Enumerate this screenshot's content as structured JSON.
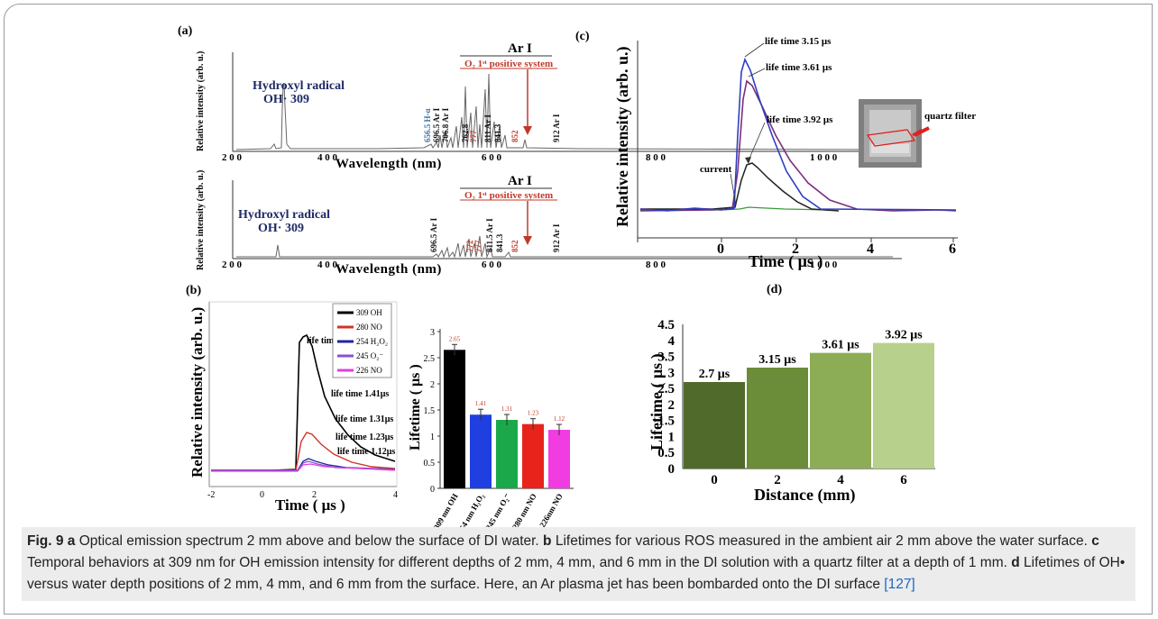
{
  "panels": {
    "a": {
      "label": "(a)",
      "top": {
        "header": "Ar I",
        "o2_label": "O₂ 1ˢᵗ positive system",
        "oh_title": "Hydroxyl radical",
        "oh_peak": "OH· 309",
        "ylabel": "Relative intensity (arb. u.)",
        "xlabel": "Wavelength (nm)",
        "ticks": [
          "2 0 0",
          "4 0 0",
          "6 0 0",
          "8 0 0",
          "1 0 0 0"
        ],
        "peak_labels": [
          "656.5 H-α",
          "696.5 Ar I",
          "706.8 Ar I",
          "762.8",
          "777",
          "811 Ar I",
          "841.3",
          "852",
          "912 Ar I"
        ]
      },
      "bottom": {
        "header": "Ar I",
        "o2_label": "O₂ 1ˢᵗ positive system",
        "oh_title": "Hydroxyl radical",
        "oh_peak": "OH· 309",
        "ylabel": "Relative intensity (arb. u.)",
        "xlabel": "Wavelength (nm)",
        "ticks": [
          "2 0 0",
          "4 0 0",
          "6 0 0",
          "8 0 0",
          "1 0 0 0"
        ],
        "peak_labels": [
          "696.5 Ar I",
          "772",
          "777",
          "811.5 Ar I",
          "841.3",
          "852",
          "912 Ar I"
        ]
      }
    },
    "b": {
      "label": "(b)",
      "ylabel": "Relative intensity (arb. u.)",
      "xlabel": "Time ( μs )",
      "xticks": [
        "-2",
        "0",
        "2",
        "4"
      ],
      "legend": [
        "309 OH",
        "280 NO",
        "254 H₂O₂",
        "245 O₂⁻",
        "226 NO"
      ],
      "lifetime_labels": [
        "life time 2.65 μs",
        "life time 1.41μs",
        "life time 1.31μs",
        "life time 1.23μs",
        "life time 1.12μs"
      ]
    },
    "c": {
      "label": "(c)",
      "ylabel": "Relative intensity (arb. u.)",
      "xlabel": "Time ( μs )",
      "xticks": [
        "0",
        "2",
        "4",
        "6"
      ],
      "lifetime_labels": [
        "life time 3.15 μs",
        "life time 3.61 μs",
        "life time 3.92 μs"
      ],
      "current_label": "current",
      "inset_label": "quartz filter"
    },
    "d": {
      "label": "(d)"
    }
  },
  "chart_data": [
    {
      "type": "bar",
      "panel": "b-inset",
      "categories": [
        "309 nm OH",
        "254 nm H₂O₂",
        "245 nm O₂⁻",
        "280 nm NO",
        "226nm NO"
      ],
      "values": [
        2.65,
        1.41,
        1.31,
        1.23,
        1.12
      ],
      "value_labels": [
        "2.65",
        "1.41",
        "1.31",
        "1.23",
        "1.12"
      ],
      "colors": [
        "#000000",
        "#1f3fe0",
        "#1aa84a",
        "#e8231c",
        "#f03ce0"
      ],
      "ylabel": "Lifetime ( μs )",
      "ylim": [
        0,
        3
      ],
      "ytick_labels": [
        "0",
        "0.5",
        "1",
        "1.5",
        "2",
        "2.5",
        "3"
      ]
    },
    {
      "type": "bar",
      "panel": "d",
      "categories": [
        "0",
        "2",
        "4",
        "6"
      ],
      "values": [
        2.7,
        3.15,
        3.61,
        3.92
      ],
      "value_labels": [
        "2.7 μs",
        "3.15 μs",
        "3.61 μs",
        "3.92 μs"
      ],
      "colors": [
        "#4f6a2a",
        "#6b8c38",
        "#8cad55",
        "#b7d08b"
      ],
      "xlabel": "Distance (mm)",
      "ylabel": "Lifetime ( μs )",
      "ylim": [
        0,
        4.5
      ],
      "ytick_labels": [
        "0",
        "0.5",
        "1",
        "1.5",
        "2",
        "2.5",
        "3",
        "3.5",
        "4",
        "4.5"
      ]
    }
  ],
  "caption": {
    "a_lead": "Fig. 9",
    "a_key": "a",
    "a_text": " Optical emission spectrum 2 mm above and below the surface of DI water. ",
    "b_key": "b",
    "b_text": " Lifetimes for various ROS measured in the ambient air 2 mm above the water surface. ",
    "c_key": "c",
    "c_text": " Temporal behaviors at 309 nm for OH emission intensity for different depths of 2 mm, 4 mm, and 6 mm in the DI solution with a quartz filter at a depth of 1 mm. ",
    "d_key": "d",
    "d_text": " Lifetimes of OH• versus water depth positions of 2 mm, 4 mm, and 6 mm from the surface. Here, an Ar plasma jet has been bombarded onto the DI surface ",
    "ref": "[127]"
  }
}
